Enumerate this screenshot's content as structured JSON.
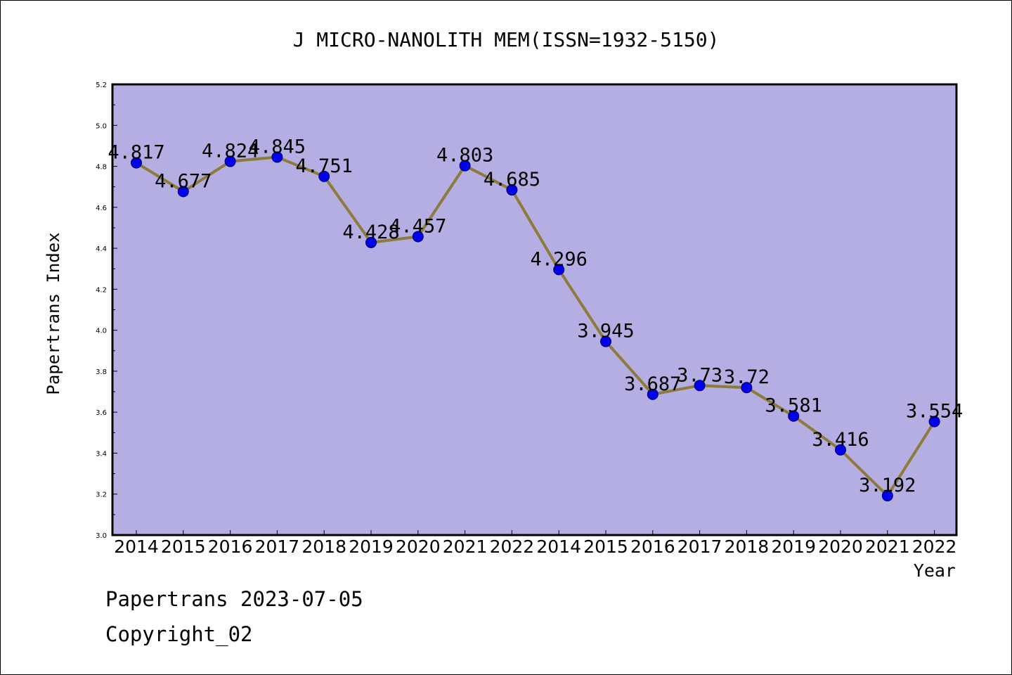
{
  "chart_data": {
    "type": "line",
    "title": "J MICRO-NANOLITH MEM(ISSN=1932-5150)",
    "xlabel": "Year",
    "ylabel": "Papertrans Index",
    "categories": [
      "2014",
      "2015",
      "2016",
      "2017",
      "2018",
      "2019",
      "2020",
      "2021",
      "2022",
      "2014",
      "2015",
      "2016",
      "2017",
      "2018",
      "2019",
      "2020",
      "2021",
      "2022"
    ],
    "values": [
      4.817,
      4.677,
      4.824,
      4.845,
      4.751,
      4.428,
      4.457,
      4.803,
      4.685,
      4.296,
      3.945,
      3.687,
      3.73,
      3.72,
      3.581,
      3.416,
      3.192,
      3.554
    ],
    "data_labels": [
      "4.817",
      "4.677",
      "4.824",
      "4.845",
      "4.751",
      "4.428",
      "4.457",
      "4.803",
      "4.685",
      "4.296",
      "3.945",
      "3.687",
      "3.73",
      "3.72",
      "3.581",
      "3.416",
      "3.192",
      "3.554"
    ],
    "ylim": [
      3.0,
      5.2
    ],
    "yticks": [
      "3.0",
      "3.2",
      "3.4",
      "3.6",
      "3.8",
      "4.0",
      "4.2",
      "4.4",
      "4.6",
      "4.8",
      "5.0",
      "5.2"
    ],
    "grid": false,
    "colors": {
      "plot_background": "#b4aee2",
      "line": "#8c7b3a",
      "marker": "#0000ee"
    }
  },
  "footer": {
    "date_text": "Papertrans 2023-07-05",
    "copyright_text": "Copyright_02"
  }
}
